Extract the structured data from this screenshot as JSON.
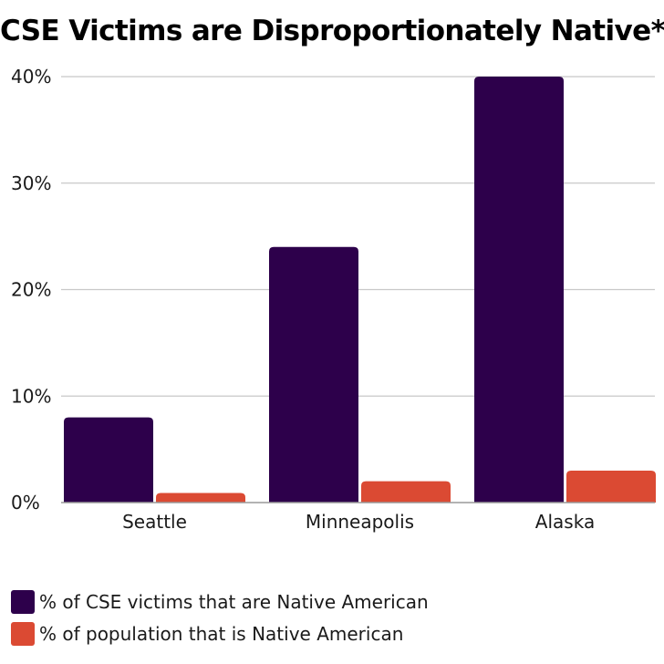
{
  "chart_data": {
    "type": "bar",
    "title": "CSE Victims are Disproportionately Native*",
    "xlabel": "",
    "ylabel": "",
    "categories": [
      "Seattle",
      "Minneapolis",
      "Alaska"
    ],
    "series": [
      {
        "name": "% of CSE victims that are Native American",
        "values": [
          8,
          24,
          40
        ],
        "color": "#2d004b"
      },
      {
        "name": "% of population that is Native American",
        "values": [
          0.9,
          2,
          3
        ],
        "color": "#db4a33"
      }
    ],
    "ylim": [
      0,
      40
    ],
    "yticks": [
      0,
      10,
      20,
      30,
      40
    ],
    "ytick_labels": [
      "0%",
      "10%",
      "20%",
      "30%",
      "40%"
    ],
    "grid": true,
    "legend_position": "bottom-left"
  }
}
